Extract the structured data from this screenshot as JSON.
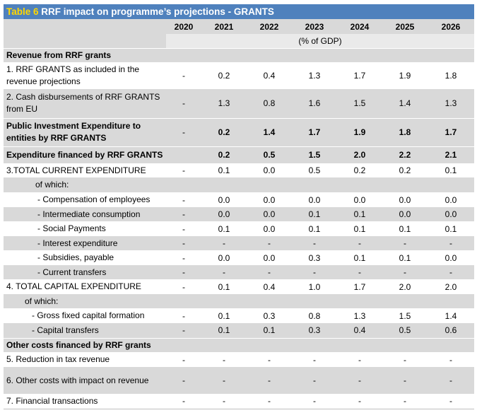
{
  "table_number": "Table 6",
  "table_title": "RRF impact on programme’s projections - GRANTS",
  "years": [
    "2020",
    "2021",
    "2022",
    "2023",
    "2024",
    "2025",
    "2026"
  ],
  "unit": "(% of GDP)",
  "rows": [
    {
      "label": "Revenue from RRF grants",
      "v": [
        "",
        "",
        "",
        "",
        "",
        "",
        ""
      ]
    },
    {
      "label": "1. RRF GRANTS as included in the revenue projections",
      "v": [
        "-",
        "0.2",
        "0.4",
        "1.3",
        "1.7",
        "1.9",
        "1.8"
      ]
    },
    {
      "label": "2. Cash disbursements of RRF GRANTS from EU",
      "v": [
        "-",
        "1.3",
        "0.8",
        "1.6",
        "1.5",
        "1.4",
        "1.3"
      ]
    },
    {
      "label": "Public Investment Expenditure to entities by RRF GRANTS",
      "v": [
        "-",
        "0.2",
        "1.4",
        "1.7",
        "1.9",
        "1.8",
        "1.7"
      ]
    },
    {
      "label": "Expenditure financed by RRF GRANTS",
      "v": [
        "",
        "0.2",
        "0.5",
        "1.5",
        "2.0",
        "2.2",
        "2.1"
      ]
    },
    {
      "label": "3.TOTAL CURRENT EXPENDITURE",
      "v": [
        "-",
        "0.1",
        "0.0",
        "0.5",
        "0.2",
        "0.2",
        "0.1"
      ]
    },
    {
      "label": "of which:",
      "v": [
        "",
        "",
        "",
        "",
        "",
        "",
        ""
      ]
    },
    {
      "label": "- Compensation of employees",
      "v": [
        "-",
        "0.0",
        "0.0",
        "0.0",
        "0.0",
        "0.0",
        "0.0"
      ]
    },
    {
      "label": "- Intermediate consumption",
      "v": [
        "-",
        "0.0",
        "0.0",
        "0.1",
        "0.1",
        "0.0",
        "0.0"
      ]
    },
    {
      "label": "- Social Payments",
      "v": [
        "-",
        "0.1",
        "0.0",
        "0.1",
        "0.1",
        "0.1",
        "0.1"
      ]
    },
    {
      "label": "- Interest expenditure",
      "v": [
        "-",
        "-",
        "-",
        "-",
        "-",
        "-",
        "-"
      ]
    },
    {
      "label": "- Subsidies, payable",
      "v": [
        "-",
        "0.0",
        "0.0",
        "0.3",
        "0.1",
        "0.1",
        "0.0"
      ]
    },
    {
      "label": "- Current transfers",
      "v": [
        "-",
        "-",
        "-",
        "-",
        "-",
        "-",
        "-"
      ]
    },
    {
      "label": "4. TOTAL CAPITAL EXPENDITURE",
      "v": [
        "-",
        "0.1",
        "0.4",
        "1.0",
        "1.7",
        "2.0",
        "2.0"
      ]
    },
    {
      "label": "of which:",
      "v": [
        "",
        "",
        "",
        "",
        "",
        "",
        ""
      ]
    },
    {
      "label": "- Gross fixed capital formation",
      "v": [
        "-",
        "0.1",
        "0.3",
        "0.8",
        "1.3",
        "1.5",
        "1.4"
      ]
    },
    {
      "label": "- Capital transfers",
      "v": [
        "-",
        "0.1",
        "0.1",
        "0.3",
        "0.4",
        "0.5",
        "0.6"
      ]
    },
    {
      "label": "Other costs financed by RRF grants",
      "v": [
        "",
        "",
        "",
        "",
        "",
        "",
        ""
      ]
    },
    {
      "label": "5. Reduction in tax revenue",
      "v": [
        "-",
        "-",
        "-",
        "-",
        "-",
        "-",
        "-"
      ]
    },
    {
      "label": "6. Other costs with impact on revenue",
      "v": [
        "-",
        "-",
        "-",
        "-",
        "-",
        "-",
        "-"
      ]
    },
    {
      "label": "7. Financial transactions",
      "v": [
        "-",
        "-",
        "-",
        "-",
        "-",
        "-",
        "-"
      ]
    }
  ]
}
